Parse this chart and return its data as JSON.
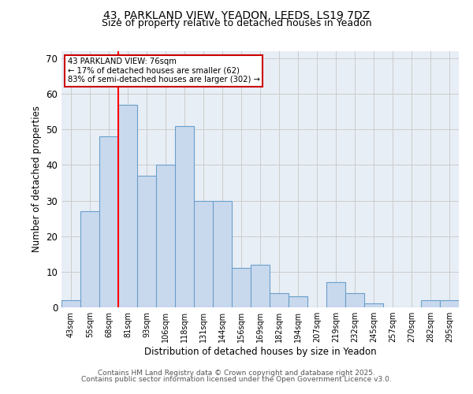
{
  "title1": "43, PARKLAND VIEW, YEADON, LEEDS, LS19 7DZ",
  "title2": "Size of property relative to detached houses in Yeadon",
  "xlabel": "Distribution of detached houses by size in Yeadon",
  "ylabel": "Number of detached properties",
  "categories": [
    "43sqm",
    "55sqm",
    "68sqm",
    "81sqm",
    "93sqm",
    "106sqm",
    "118sqm",
    "131sqm",
    "144sqm",
    "156sqm",
    "169sqm",
    "182sqm",
    "194sqm",
    "207sqm",
    "219sqm",
    "232sqm",
    "245sqm",
    "257sqm",
    "270sqm",
    "282sqm",
    "295sqm"
  ],
  "values": [
    2,
    27,
    48,
    57,
    37,
    40,
    51,
    30,
    30,
    11,
    12,
    4,
    3,
    0,
    7,
    4,
    1,
    0,
    0,
    2,
    2
  ],
  "bar_color": "#c9d9ed",
  "bar_edge_color": "#6a9fcb",
  "bar_linewidth": 0.8,
  "red_line_x": 3.0,
  "annotation_text": "43 PARKLAND VIEW: 76sqm\n← 17% of detached houses are smaller (62)\n83% of semi-detached houses are larger (302) →",
  "annotation_box_color": "#ffffff",
  "annotation_box_edge": "#cc0000",
  "ylim": [
    0,
    72
  ],
  "yticks": [
    0,
    10,
    20,
    30,
    40,
    50,
    60,
    70
  ],
  "grid_color": "#cccccc",
  "bg_color": "#e8eef5",
  "footer1": "Contains HM Land Registry data © Crown copyright and database right 2025.",
  "footer2": "Contains public sector information licensed under the Open Government Licence v3.0."
}
